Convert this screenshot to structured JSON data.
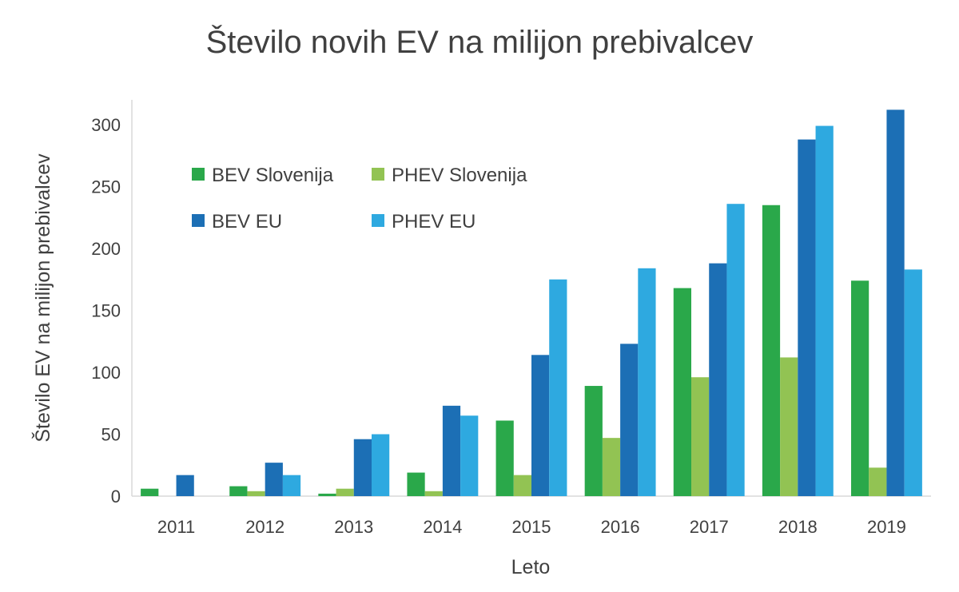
{
  "chart_data": {
    "type": "bar",
    "title": "Število novih EV na milijon prebivalcev",
    "xlabel": "Leto",
    "ylabel": "Število EV na milijon prebivalcev",
    "categories": [
      "2011",
      "2012",
      "2013",
      "2014",
      "2015",
      "2016",
      "2017",
      "2018",
      "2019"
    ],
    "ylim": [
      0,
      320
    ],
    "yticks": [
      0,
      50,
      100,
      150,
      200,
      250,
      300
    ],
    "grid": false,
    "legend_position": "top-left",
    "series": [
      {
        "name": "BEV Slovenija",
        "color": "#2aa84a",
        "values": [
          6,
          8,
          2,
          19,
          61,
          89,
          168,
          235,
          174
        ]
      },
      {
        "name": "PHEV Slovenija",
        "color": "#92c353",
        "values": [
          0,
          4,
          6,
          4,
          17,
          47,
          96,
          112,
          23
        ]
      },
      {
        "name": "BEV EU",
        "color": "#1c6fb5",
        "values": [
          17,
          27,
          46,
          73,
          114,
          123,
          188,
          288,
          312
        ]
      },
      {
        "name": "PHEV EU",
        "color": "#2ea9e0",
        "values": [
          0,
          17,
          50,
          65,
          175,
          184,
          236,
          299,
          183
        ]
      }
    ]
  }
}
